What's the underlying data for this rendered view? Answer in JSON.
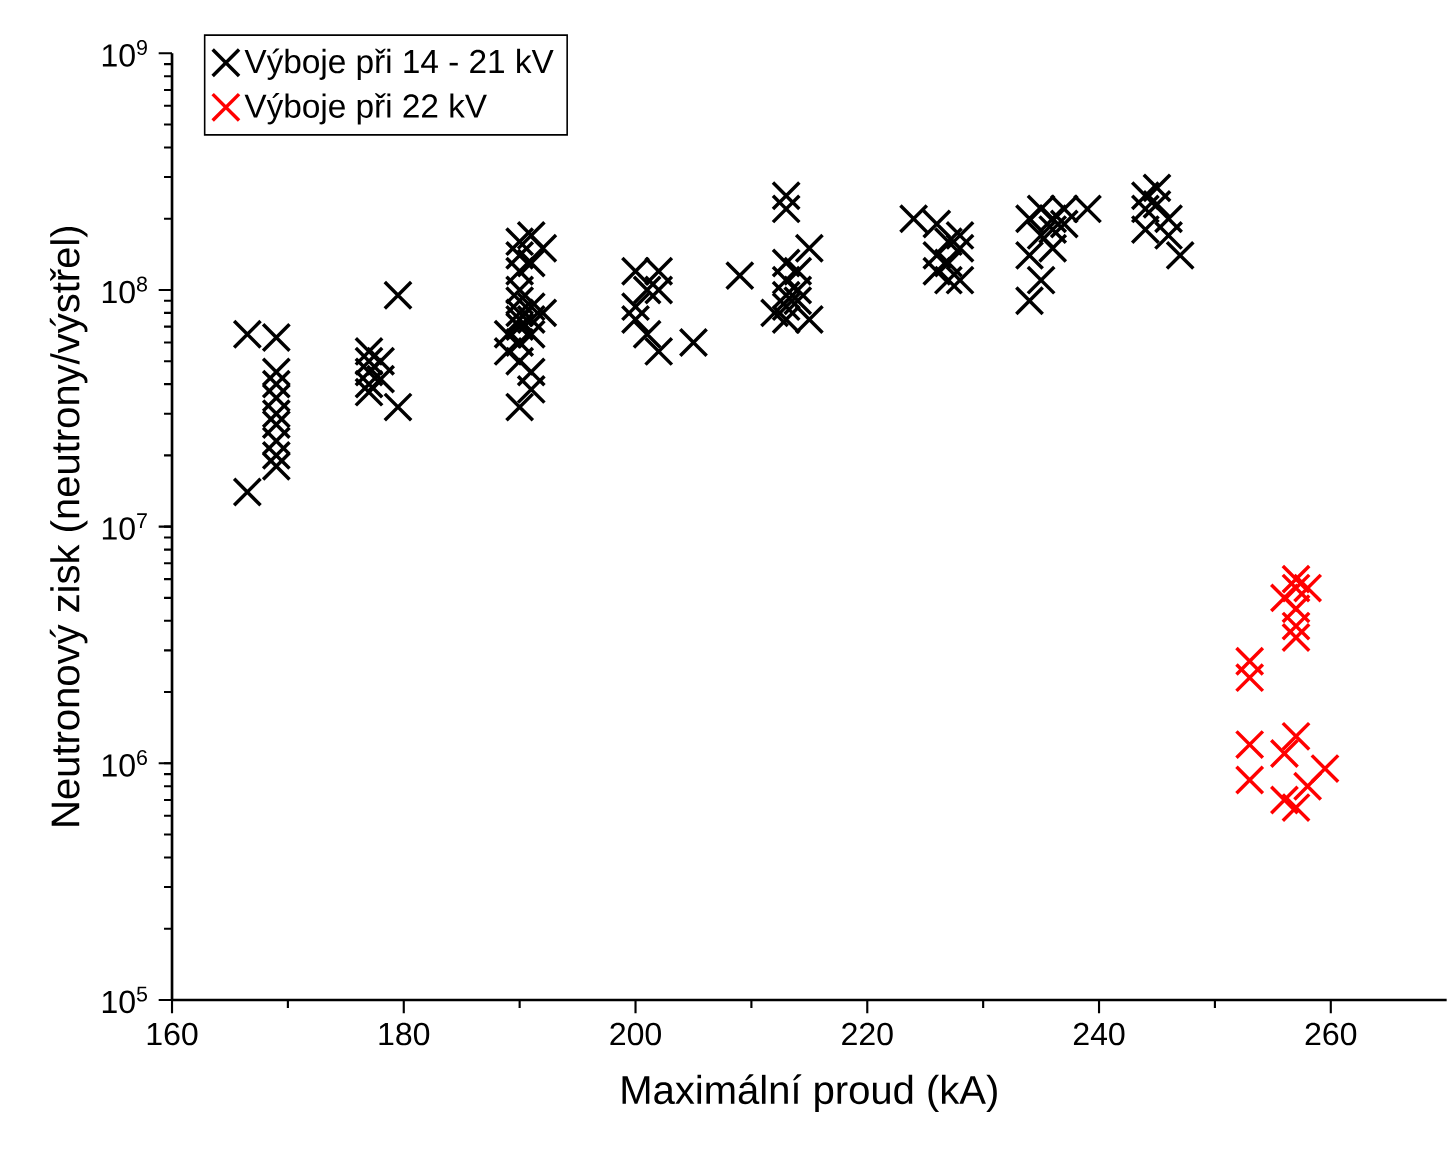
{
  "chart_data": {
    "type": "scatter",
    "xlabel": "Maximální proud (kA)",
    "ylabel": "Neutronový zisk (neutrony/výstřel)",
    "log": "y",
    "grid": false,
    "legend": "top left",
    "marker": "cross",
    "xlim": [
      160,
      270
    ],
    "xticks": [
      160,
      180,
      200,
      220,
      240,
      260
    ],
    "ylim": [
      100000,
      1000000000
    ],
    "yticks": [
      {
        "value": 100000,
        "label": "10$^{5}$"
      },
      {
        "value": 1000000,
        "label": "10$^{6}$"
      },
      {
        "value": 10000000,
        "label": "10$^{7}$"
      },
      {
        "value": 100000000,
        "label": "10$^{8}$"
      },
      {
        "value": 1000000000,
        "label": "10$^{9}$"
      }
    ],
    "series": [
      {
        "name": "Výboje při 14 - 21 kV",
        "color": "#000000",
        "x": [
          166.5,
          166.5,
          169,
          169,
          169,
          169,
          169,
          169,
          169,
          169,
          169,
          177,
          177,
          177,
          177,
          177,
          178,
          178,
          179.5,
          179.5,
          189,
          189,
          190,
          190,
          190,
          190,
          190,
          190,
          190,
          190,
          190,
          190,
          190,
          191,
          191,
          191,
          191,
          191,
          191,
          191,
          192,
          192,
          200,
          200,
          200,
          201,
          201,
          202,
          202,
          202,
          205,
          209,
          212,
          213,
          213,
          213,
          213,
          213,
          213,
          213,
          214,
          214,
          214,
          215,
          215,
          224,
          226,
          226,
          226,
          227,
          227,
          227,
          228,
          228,
          228,
          234,
          234,
          234,
          235,
          235,
          235,
          236,
          236,
          236,
          237,
          237,
          239,
          244,
          244,
          244,
          245,
          245,
          246,
          246,
          247
        ],
        "values": [
          65000000,
          14000000,
          63000000,
          45000000,
          40000000,
          35000000,
          30000000,
          27000000,
          23000000,
          20000000,
          18000000,
          55000000,
          50000000,
          45000000,
          40000000,
          37000000,
          50000000,
          42000000,
          95000000,
          32000000,
          65000000,
          55000000,
          160000000,
          140000000,
          120000000,
          100000000,
          90000000,
          80000000,
          75000000,
          70000000,
          60000000,
          50000000,
          32000000,
          170000000,
          130000000,
          85000000,
          75000000,
          65000000,
          45000000,
          38000000,
          150000000,
          80000000,
          120000000,
          85000000,
          75000000,
          100000000,
          65000000,
          120000000,
          100000000,
          55000000,
          60000000,
          115000000,
          80000000,
          250000000,
          220000000,
          130000000,
          110000000,
          95000000,
          85000000,
          75000000,
          120000000,
          100000000,
          90000000,
          150000000,
          75000000,
          200000000,
          190000000,
          140000000,
          120000000,
          160000000,
          130000000,
          110000000,
          170000000,
          150000000,
          110000000,
          200000000,
          140000000,
          90000000,
          220000000,
          170000000,
          110000000,
          200000000,
          180000000,
          150000000,
          220000000,
          190000000,
          220000000,
          250000000,
          220000000,
          180000000,
          270000000,
          230000000,
          200000000,
          170000000,
          140000000
        ]
      },
      {
        "name": "Výboje při 22 kV",
        "color": "#ff0000",
        "x": [
          253,
          253,
          253,
          253,
          256,
          256,
          256,
          257,
          257,
          257,
          257,
          257,
          257,
          257,
          258,
          258,
          259.5
        ],
        "values": [
          2700000,
          2300000,
          1200000,
          850000,
          5000000,
          1100000,
          700000,
          6000000,
          5500000,
          4500000,
          3800000,
          3400000,
          1300000,
          650000,
          5500000,
          800000,
          950000
        ]
      }
    ]
  }
}
